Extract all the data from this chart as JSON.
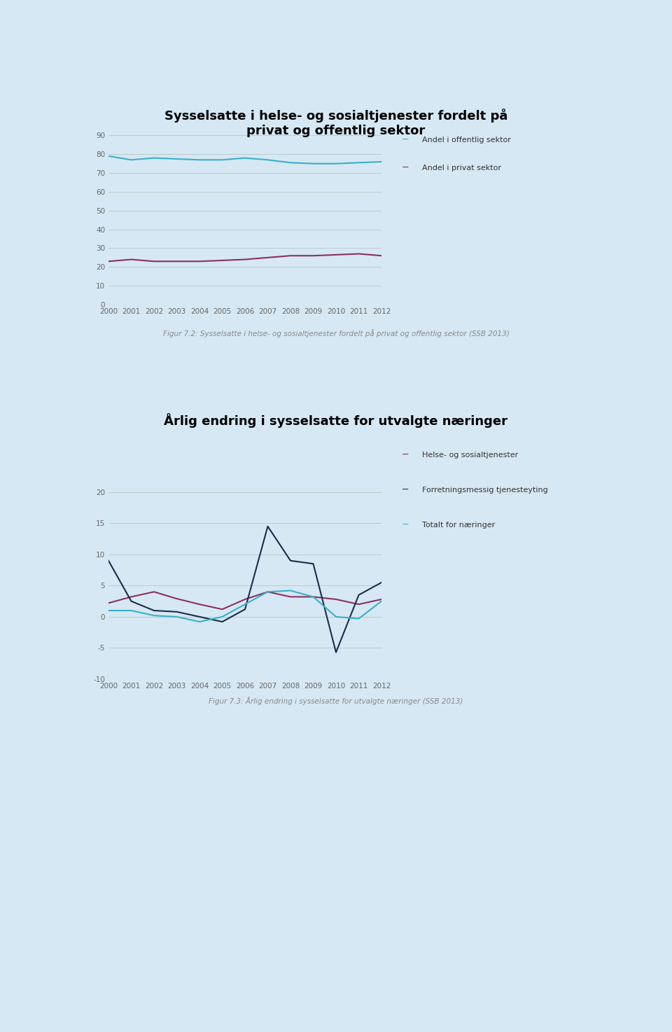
{
  "background_color": "#d6e8f3",
  "years": [
    2000,
    2001,
    2002,
    2003,
    2004,
    2005,
    2006,
    2007,
    2008,
    2009,
    2010,
    2011,
    2012
  ],
  "chart1": {
    "title": "Sysselsatte i helse- og sosialtjenester fordelt på\nprivat og offentlig sektor",
    "title_fontsize": 13,
    "offentlig": [
      79.0,
      77.0,
      78.0,
      77.5,
      77.0,
      77.0,
      78.0,
      77.0,
      75.5,
      75.0,
      75.0,
      75.5,
      76.0
    ],
    "privat": [
      23.0,
      24.0,
      23.0,
      23.0,
      23.0,
      23.5,
      24.0,
      25.0,
      26.0,
      26.0,
      26.5,
      27.0,
      26.0
    ],
    "offentlig_color": "#3ab0c8",
    "privat_color": "#8b3060",
    "offentlig_label": "Andel i offentlig sektor",
    "privat_label": "Andel i privat sektor",
    "ylim": [
      0,
      95
    ],
    "yticks": [
      0,
      10,
      20,
      30,
      40,
      50,
      60,
      70,
      80,
      90
    ],
    "caption": "Figur 7.2: Sysselsatte i helse- og sosialtjenester fordelt på privat og offentlig sektor (SSB 2013)"
  },
  "chart2": {
    "title": "Årlig endring i sysselsatte for utvalgte næringer",
    "title_fontsize": 13,
    "helse": [
      2.2,
      3.2,
      4.0,
      2.9,
      2.0,
      1.2,
      2.8,
      4.0,
      3.2,
      3.2,
      2.8,
      2.0,
      2.8
    ],
    "forretningsmessig": [
      9.0,
      2.5,
      1.0,
      0.8,
      0.0,
      -0.8,
      1.2,
      14.5,
      9.0,
      8.5,
      -5.7,
      3.5,
      5.5
    ],
    "totalt": [
      1.0,
      1.0,
      0.2,
      0.0,
      -0.8,
      0.0,
      2.0,
      4.0,
      4.2,
      3.2,
      0.0,
      -0.3,
      2.5
    ],
    "helse_color": "#8b3060",
    "forretningsmessig_color": "#1a2d4a",
    "totalt_color": "#3ab0c8",
    "helse_label": "Helse- og sosialtjenester",
    "forretningsmessig_label": "Forretningsmessig tjenesteyting",
    "totalt_label": "Totalt for næringer",
    "ylim": [
      -10,
      22
    ],
    "yticks": [
      -10,
      -5,
      0,
      5,
      10,
      15,
      20
    ],
    "caption": "Figur 7.3: Årlig endring i sysselsatte for utvalgte næringer (SSB 2013)"
  }
}
